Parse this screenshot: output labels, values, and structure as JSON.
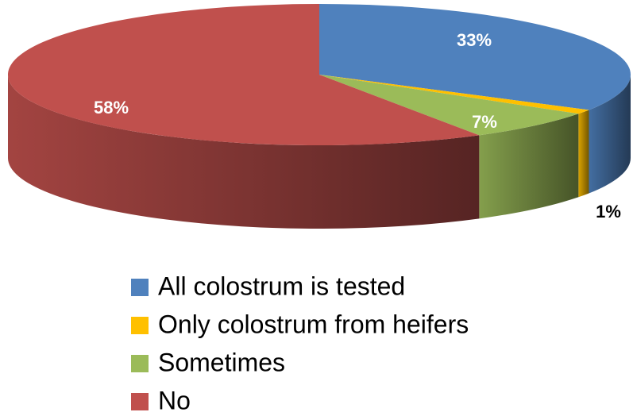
{
  "chart_data": {
    "type": "pie3d",
    "categories": [
      "All colostrum is tested",
      "Only colostrum from heifers",
      "Sometimes",
      "No"
    ],
    "values": [
      33,
      1,
      7,
      58
    ],
    "value_labels": [
      "33%",
      "1%",
      "7%",
      "58%"
    ],
    "colors": [
      "#4f81bd",
      "#ffc000",
      "#9bbb59",
      "#c0504d"
    ],
    "legend": "bottom"
  }
}
